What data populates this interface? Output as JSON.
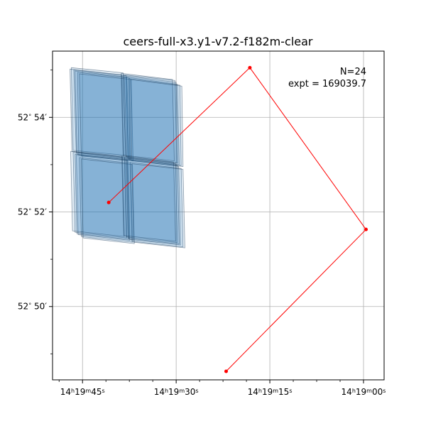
{
  "chart_data": {
    "type": "scatter",
    "title": "ceers-full-x3.y1-v7.2-f182m-clear",
    "xlabel": "",
    "ylabel": "",
    "x_axis": {
      "unit": "seconds of RA past 14h19m",
      "lim": [
        49.8,
        -3.3
      ],
      "inverted": true,
      "ticks": [
        {
          "value": 45,
          "label_h": "14",
          "label_m": "19",
          "label_s": "45"
        },
        {
          "value": 30,
          "label_h": "14",
          "label_m": "19",
          "label_s": "30"
        },
        {
          "value": 15,
          "label_h": "14",
          "label_m": "19",
          "label_s": "15"
        },
        {
          "value": 0,
          "label_h": "14",
          "label_m": "19",
          "label_s": "00"
        }
      ],
      "minor_ticks": [
        48.75,
        41.25,
        37.5,
        33.75,
        26.25,
        22.5,
        18.75,
        11.25,
        7.5,
        3.75,
        -3.75
      ]
    },
    "y_axis": {
      "unit": "arcmin of Dec past 52°",
      "lim": [
        48.45,
        55.4
      ],
      "ticks": [
        {
          "value": 50,
          "label_deg": "52",
          "label_min": "50"
        },
        {
          "value": 52,
          "label_deg": "52",
          "label_min": "52"
        },
        {
          "value": 54,
          "label_deg": "52",
          "label_min": "54"
        }
      ],
      "minor_ticks": [
        49,
        51,
        53,
        55
      ]
    },
    "grid": true,
    "annotations": {
      "n_label": "N=24",
      "expt_label": "expt = 169039.7"
    },
    "path_color": "#ff0000",
    "footprint_color": "#1f77b4",
    "path": [
      {
        "ra_s": 40.8,
        "dec_m": 52.2
      },
      {
        "ra_s": 18.2,
        "dec_m": 55.05
      },
      {
        "ra_s": -0.4,
        "dec_m": 51.63
      },
      {
        "ra_s": 22.0,
        "dec_m": 48.63
      }
    ],
    "footprints": [
      {
        "module": "upper-left",
        "corners": [
          [
            46.4,
            55.0
          ],
          [
            38.0,
            54.88
          ],
          [
            37.7,
            53.15
          ],
          [
            46.0,
            53.25
          ]
        ]
      },
      {
        "module": "upper-left",
        "corners": [
          [
            46.8,
            55.05
          ],
          [
            38.5,
            54.94
          ],
          [
            38.1,
            53.2
          ],
          [
            46.5,
            53.3
          ]
        ]
      },
      {
        "module": "upper-left",
        "corners": [
          [
            45.8,
            54.95
          ],
          [
            37.5,
            54.83
          ],
          [
            37.3,
            53.1
          ],
          [
            45.6,
            53.2
          ]
        ]
      },
      {
        "module": "upper-left",
        "corners": [
          [
            46.2,
            54.98
          ],
          [
            37.9,
            54.85
          ],
          [
            37.5,
            53.12
          ],
          [
            45.9,
            53.22
          ]
        ]
      },
      {
        "module": "upper-left",
        "corners": [
          [
            47.0,
            55.02
          ],
          [
            38.7,
            54.9
          ],
          [
            38.4,
            53.18
          ],
          [
            46.7,
            53.28
          ]
        ]
      },
      {
        "module": "upper-left",
        "corners": [
          [
            45.5,
            54.92
          ],
          [
            37.2,
            54.8
          ],
          [
            36.9,
            53.08
          ],
          [
            45.2,
            53.18
          ]
        ]
      },
      {
        "module": "upper-right",
        "corners": [
          [
            38.0,
            54.85
          ],
          [
            29.8,
            54.7
          ],
          [
            29.5,
            53.0
          ],
          [
            37.7,
            53.13
          ]
        ]
      },
      {
        "module": "upper-right",
        "corners": [
          [
            38.5,
            54.9
          ],
          [
            30.2,
            54.78
          ],
          [
            29.9,
            53.05
          ],
          [
            38.1,
            53.18
          ]
        ]
      },
      {
        "module": "upper-right",
        "corners": [
          [
            37.6,
            54.82
          ],
          [
            29.4,
            54.68
          ],
          [
            29.2,
            52.98
          ],
          [
            37.4,
            53.1
          ]
        ]
      },
      {
        "module": "upper-right",
        "corners": [
          [
            38.3,
            54.88
          ],
          [
            30.0,
            54.74
          ],
          [
            29.7,
            53.03
          ],
          [
            37.9,
            53.15
          ]
        ]
      },
      {
        "module": "upper-right",
        "corners": [
          [
            38.8,
            54.93
          ],
          [
            30.6,
            54.8
          ],
          [
            30.3,
            53.08
          ],
          [
            38.5,
            53.2
          ]
        ]
      },
      {
        "module": "upper-right",
        "corners": [
          [
            37.3,
            54.8
          ],
          [
            29.1,
            54.66
          ],
          [
            28.9,
            52.96
          ],
          [
            37.1,
            53.08
          ]
        ]
      },
      {
        "module": "lower-left",
        "corners": [
          [
            46.0,
            53.2
          ],
          [
            37.7,
            53.08
          ],
          [
            37.4,
            51.4
          ],
          [
            45.7,
            51.52
          ]
        ]
      },
      {
        "module": "lower-left",
        "corners": [
          [
            46.5,
            53.26
          ],
          [
            38.2,
            53.14
          ],
          [
            37.9,
            51.45
          ],
          [
            46.2,
            51.57
          ]
        ]
      },
      {
        "module": "lower-left",
        "corners": [
          [
            45.5,
            53.15
          ],
          [
            37.3,
            53.03
          ],
          [
            37.0,
            51.36
          ],
          [
            45.2,
            51.48
          ]
        ]
      },
      {
        "module": "lower-left",
        "corners": [
          [
            46.2,
            53.22
          ],
          [
            37.9,
            53.1
          ],
          [
            37.6,
            51.42
          ],
          [
            45.9,
            51.54
          ]
        ]
      },
      {
        "module": "lower-left",
        "corners": [
          [
            46.9,
            53.28
          ],
          [
            38.6,
            53.16
          ],
          [
            38.3,
            51.48
          ],
          [
            46.6,
            51.6
          ]
        ]
      },
      {
        "module": "lower-left",
        "corners": [
          [
            45.2,
            53.12
          ],
          [
            37.0,
            53.0
          ],
          [
            36.7,
            51.33
          ],
          [
            44.9,
            51.45
          ]
        ]
      },
      {
        "module": "lower-right",
        "corners": [
          [
            37.8,
            53.1
          ],
          [
            29.6,
            52.96
          ],
          [
            29.3,
            51.3
          ],
          [
            37.5,
            51.42
          ]
        ]
      },
      {
        "module": "lower-right",
        "corners": [
          [
            38.3,
            53.15
          ],
          [
            30.1,
            53.02
          ],
          [
            29.8,
            51.35
          ],
          [
            38.0,
            51.47
          ]
        ]
      },
      {
        "module": "lower-right",
        "corners": [
          [
            37.4,
            53.05
          ],
          [
            29.2,
            52.92
          ],
          [
            28.9,
            51.26
          ],
          [
            37.1,
            51.38
          ]
        ]
      },
      {
        "module": "lower-right",
        "corners": [
          [
            38.0,
            53.12
          ],
          [
            29.8,
            52.99
          ],
          [
            29.5,
            51.32
          ],
          [
            37.7,
            51.44
          ]
        ]
      },
      {
        "module": "lower-right",
        "corners": [
          [
            38.7,
            53.18
          ],
          [
            30.4,
            53.05
          ],
          [
            30.1,
            51.38
          ],
          [
            38.4,
            51.5
          ]
        ]
      },
      {
        "module": "lower-right",
        "corners": [
          [
            37.1,
            53.02
          ],
          [
            28.9,
            52.9
          ],
          [
            28.6,
            51.24
          ],
          [
            36.8,
            51.36
          ]
        ]
      }
    ]
  }
}
